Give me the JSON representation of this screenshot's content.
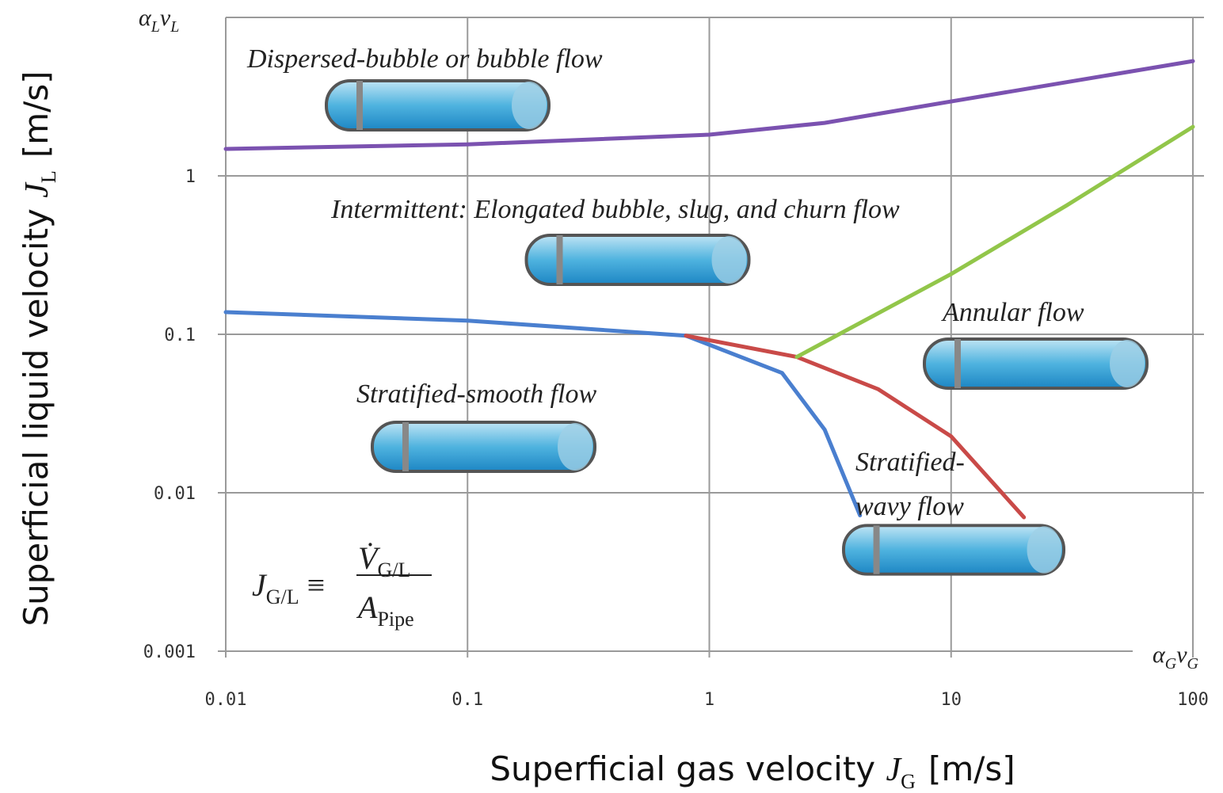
{
  "chart_data": {
    "type": "line",
    "x_label": {
      "text": "Superficial gas velocity",
      "symbol": "J",
      "subscript": "G",
      "unit": "[m/s]"
    },
    "y_label": {
      "text": "Superficial liquid velocity",
      "symbol": "J",
      "subscript": "L",
      "unit": "[m/s]"
    },
    "x_corner": [
      "α",
      "G",
      "v",
      "G"
    ],
    "y_corner": [
      "α",
      "L",
      "v",
      "L"
    ],
    "xlim": [
      0.01,
      100
    ],
    "ylim": [
      0.001,
      10
    ],
    "xticks": [
      0.01,
      0.1,
      1,
      10,
      100
    ],
    "yticks": [
      0.001,
      0.01,
      0.1,
      1
    ],
    "log_x": true,
    "log_y": true,
    "grid": true,
    "series": [
      {
        "color": "#7b52b0",
        "x": [
          0.01,
          0.1,
          1,
          3,
          10,
          100
        ],
        "values": [
          1.48,
          1.58,
          1.82,
          2.16,
          2.95,
          5.3
        ]
      },
      {
        "color": "#4a7fcf",
        "x": [
          0.01,
          0.1,
          0.8,
          2,
          3,
          4.2
        ],
        "values": [
          0.138,
          0.122,
          0.098,
          0.057,
          0.025,
          0.0072
        ]
      },
      {
        "color": "#c94a48",
        "x": [
          0.8,
          2.3,
          5,
          10,
          20
        ],
        "values": [
          0.098,
          0.072,
          0.045,
          0.0227,
          0.007
        ]
      },
      {
        "color": "#92c64a",
        "x": [
          2.3,
          10,
          30,
          100
        ],
        "values": [
          0.072,
          0.24,
          0.65,
          2.04
        ]
      }
    ],
    "annotations": [
      "Dispersed-bubble or bubble flow",
      "Intermittent: Elongated bubble, slug, and churn flow",
      "Annular flow",
      "Stratified-smooth flow",
      "Stratified-",
      "wavy flow"
    ],
    "formula": {
      "lhs": "J",
      "lhs_sub": "G/L",
      "op": "≡",
      "num": "V̇",
      "num_sub": "G/L",
      "den": "A",
      "den_sub": "Pipe"
    }
  }
}
